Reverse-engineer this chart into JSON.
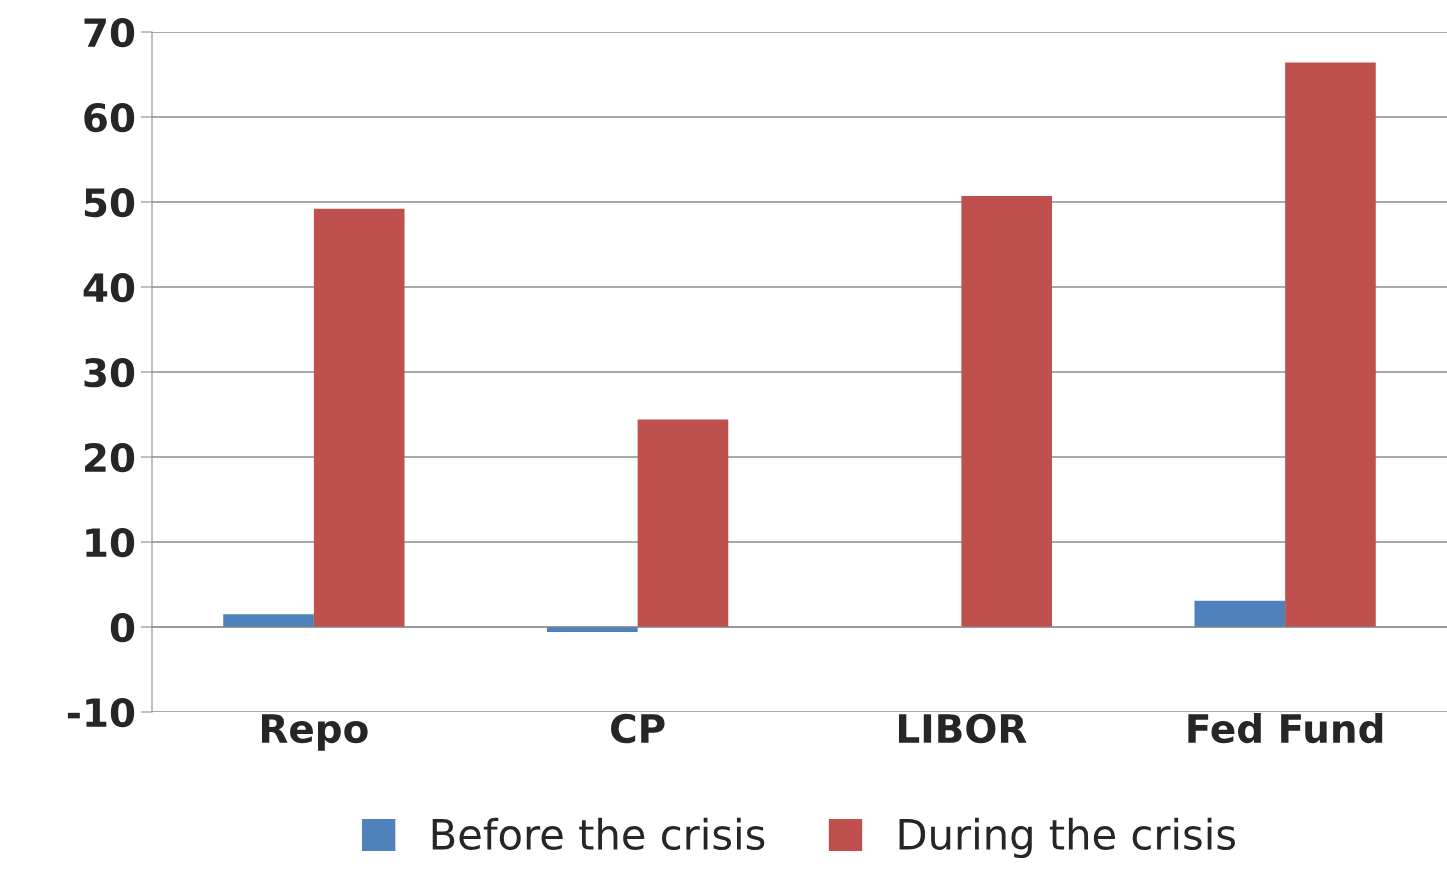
{
  "chart_data": {
    "type": "bar",
    "categories": [
      "Repo",
      "CP",
      "LIBOR",
      "Fed Fund"
    ],
    "series": [
      {
        "name": "Before the crisis",
        "color": "#4f81bd",
        "values": [
          1.5,
          -0.6,
          null,
          3.1
        ]
      },
      {
        "name": "During the crisis",
        "color": "#c0504d",
        "values": [
          49.2,
          24.4,
          50.7,
          66.4
        ]
      }
    ],
    "ylim": [
      -10,
      70
    ],
    "yticks": [
      -10,
      0,
      10,
      20,
      30,
      40,
      50,
      60,
      70
    ],
    "grid": "y",
    "legend": "bottom"
  }
}
